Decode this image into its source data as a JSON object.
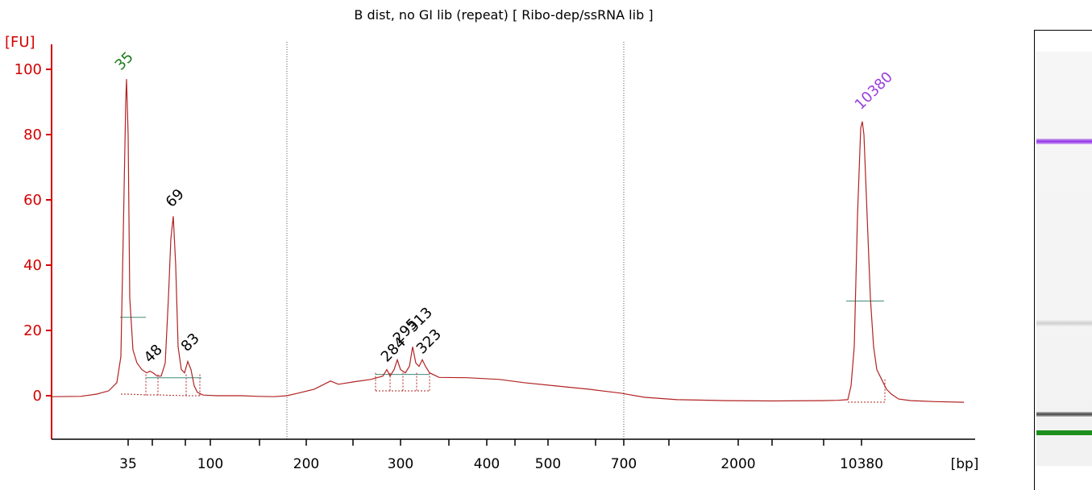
{
  "chart_data": {
    "type": "line",
    "title": "B dist, no GI lib (repeat)  [ Ribo-dep/ssRNA lib ]",
    "ylabel": "[FU]",
    "xlabel": "[bp]",
    "ylim": [
      -12,
      105
    ],
    "yticks": [
      0,
      20,
      40,
      60,
      80,
      100
    ],
    "x_tick_labels": [
      "35",
      "100",
      "200",
      "300",
      "400",
      "500",
      "700",
      "2000",
      "10380"
    ],
    "marker_labels": [
      {
        "label": "35",
        "color": "#1a7d1a"
      },
      {
        "label": "10380",
        "color": "#9b3fe0"
      }
    ],
    "peak_labels": [
      "35",
      "48",
      "69",
      "83",
      "284",
      "295",
      "313",
      "323",
      "10380"
    ],
    "series": [
      {
        "color": "#b22222",
        "points": [
          [
            64,
            -0.3
          ],
          [
            100,
            -0.2
          ],
          [
            120,
            0.5
          ],
          [
            135,
            1.5
          ],
          [
            145,
            4
          ],
          [
            150,
            12
          ],
          [
            153,
            50
          ],
          [
            156,
            90
          ],
          [
            157,
            97
          ],
          [
            159,
            80
          ],
          [
            161,
            30
          ],
          [
            165,
            14
          ],
          [
            170,
            10
          ],
          [
            176,
            8
          ],
          [
            182,
            7
          ],
          [
            186,
            7.5
          ],
          [
            190,
            7
          ],
          [
            195,
            6
          ],
          [
            200,
            6
          ],
          [
            205,
            10
          ],
          [
            209,
            30
          ],
          [
            212,
            48
          ],
          [
            215,
            55
          ],
          [
            218,
            40
          ],
          [
            221,
            15
          ],
          [
            225,
            8
          ],
          [
            229,
            7
          ],
          [
            233,
            10.5
          ],
          [
            237,
            8
          ],
          [
            241,
            3
          ],
          [
            245,
            1
          ],
          [
            252,
            0.2
          ],
          [
            270,
            0
          ],
          [
            300,
            0
          ],
          [
            320,
            -0.2
          ],
          [
            340,
            -0.3
          ],
          [
            356,
            0
          ],
          [
            370,
            0.8
          ],
          [
            390,
            2
          ],
          [
            410,
            4.5
          ],
          [
            420,
            3.5
          ],
          [
            440,
            4.3
          ],
          [
            460,
            5
          ],
          [
            475,
            6
          ],
          [
            480,
            8
          ],
          [
            484,
            6
          ],
          [
            489,
            8
          ],
          [
            493,
            11
          ],
          [
            497,
            8
          ],
          [
            503,
            7
          ],
          [
            508,
            9
          ],
          [
            512,
            15
          ],
          [
            516,
            10
          ],
          [
            520,
            9
          ],
          [
            524,
            11
          ],
          [
            528,
            9
          ],
          [
            533,
            7
          ],
          [
            545,
            5.6
          ],
          [
            580,
            5.5
          ],
          [
            620,
            5
          ],
          [
            650,
            4
          ],
          [
            690,
            3
          ],
          [
            730,
            2
          ],
          [
            770,
            0.8
          ],
          [
            800,
            -0.5
          ],
          [
            840,
            -1.2
          ],
          [
            900,
            -1.5
          ],
          [
            960,
            -1.6
          ],
          [
            1020,
            -1.5
          ],
          [
            1040,
            -1.4
          ],
          [
            1052,
            -1.2
          ],
          [
            1056,
            3
          ],
          [
            1060,
            15
          ],
          [
            1064,
            55
          ],
          [
            1068,
            82
          ],
          [
            1070,
            84
          ],
          [
            1072,
            80
          ],
          [
            1076,
            55
          ],
          [
            1080,
            30
          ],
          [
            1084,
            15
          ],
          [
            1088,
            8
          ],
          [
            1094,
            5
          ],
          [
            1100,
            2
          ],
          [
            1106,
            0.5
          ],
          [
            1115,
            -1
          ],
          [
            1130,
            -1.5
          ],
          [
            1160,
            -1.8
          ],
          [
            1196,
            -2
          ]
        ]
      }
    ]
  }
}
